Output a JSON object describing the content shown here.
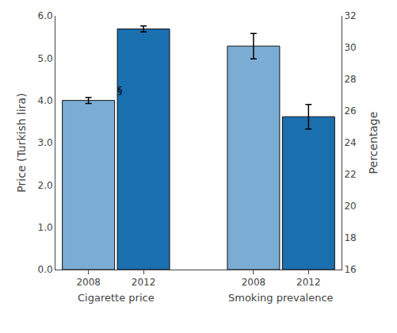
{
  "chart_data": {
    "type": "bar",
    "categories": [
      "Cigarette price",
      "Smoking prevalence"
    ],
    "series": [
      {
        "name": "2008",
        "color": "#7badd4",
        "values": [
          4.0,
          5.285
        ],
        "errors": [
          0.07,
          0.3
        ]
      },
      {
        "name": "2012",
        "color": "#1a6faf",
        "values": [
          5.69,
          3.615
        ],
        "errors": [
          0.07,
          0.29
        ]
      }
    ],
    "ylabel": "Price (Turkish lira)",
    "ylim": [
      0.0,
      6.0
    ],
    "yticks": [
      {
        "value": 0.0,
        "label": "0.0"
      },
      {
        "value": 1.0,
        "label": "1.0"
      },
      {
        "value": 2.0,
        "label": "2.0"
      },
      {
        "value": 3.0,
        "label": "3.0"
      },
      {
        "value": 4.0,
        "label": "4.0"
      },
      {
        "value": 5.0,
        "label": "5.0"
      },
      {
        "value": 6.0,
        "label": "6.0"
      }
    ],
    "y2label": "Percentage",
    "y2lim": [
      16,
      32
    ],
    "y2ticks": [
      16,
      18,
      20,
      22,
      24,
      26,
      28,
      30,
      32
    ],
    "annotations": [
      {
        "text": "§",
        "category": "Cigarette price",
        "series": "2008"
      }
    ],
    "grid": false
  }
}
